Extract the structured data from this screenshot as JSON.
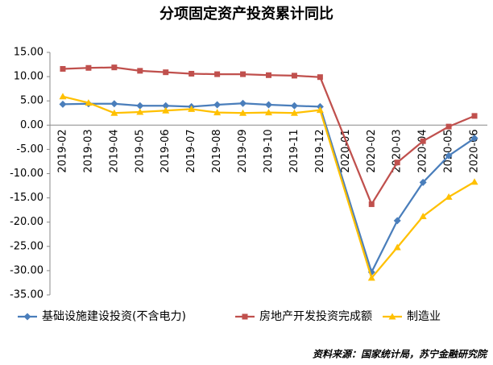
{
  "chart_data": {
    "type": "line",
    "title": "分项固定资产投资累计同比",
    "categories": [
      "2019-02",
      "2019-03",
      "2019-04",
      "2019-05",
      "2019-06",
      "2019-07",
      "2019-08",
      "2019-09",
      "2019-10",
      "2019-11",
      "2019-12",
      "2020-01",
      "2020-02",
      "2020-03",
      "2020-04",
      "2020-05",
      "2020-06"
    ],
    "series": [
      {
        "name": "基础设施建设投资(不含电力)",
        "color": "#4a7ebb",
        "marker": "diamond",
        "values": [
          4.3,
          4.4,
          4.4,
          4.0,
          4.0,
          3.8,
          4.2,
          4.5,
          4.2,
          4.0,
          3.8,
          null,
          -30.3,
          -19.7,
          -11.8,
          -6.3,
          -2.7
        ]
      },
      {
        "name": "房地产开发投资完成额",
        "color": "#c0504d",
        "marker": "square",
        "values": [
          11.6,
          11.8,
          11.9,
          11.2,
          10.9,
          10.6,
          10.5,
          10.5,
          10.3,
          10.2,
          9.9,
          null,
          -16.3,
          -7.7,
          -3.3,
          -0.3,
          1.9
        ]
      },
      {
        "name": "制造业",
        "color": "#ffc000",
        "marker": "triangle",
        "values": [
          5.9,
          4.6,
          2.5,
          2.7,
          3.0,
          3.3,
          2.6,
          2.5,
          2.6,
          2.5,
          3.1,
          null,
          -31.5,
          -25.2,
          -18.8,
          -14.8,
          -11.7
        ]
      }
    ],
    "ylim": [
      -35,
      15
    ],
    "yticks": [
      {
        "value": -35,
        "label": "-35.00"
      },
      {
        "value": -30,
        "label": "-30.00"
      },
      {
        "value": -25,
        "label": "-25.00"
      },
      {
        "value": -20,
        "label": "-20.00"
      },
      {
        "value": -15,
        "label": "-15.00"
      },
      {
        "value": -10,
        "label": "-10.00"
      },
      {
        "value": -5,
        "label": "-5.00"
      },
      {
        "value": 0,
        "label": "0.00"
      },
      {
        "value": 5,
        "label": "5.00"
      },
      {
        "value": 10,
        "label": "10.00"
      },
      {
        "value": 15,
        "label": "15.00"
      }
    ],
    "grid": false,
    "connect_gaps": true,
    "legend": "bottom",
    "source": "资料来源：国家统计局，苏宁金融研究院"
  }
}
